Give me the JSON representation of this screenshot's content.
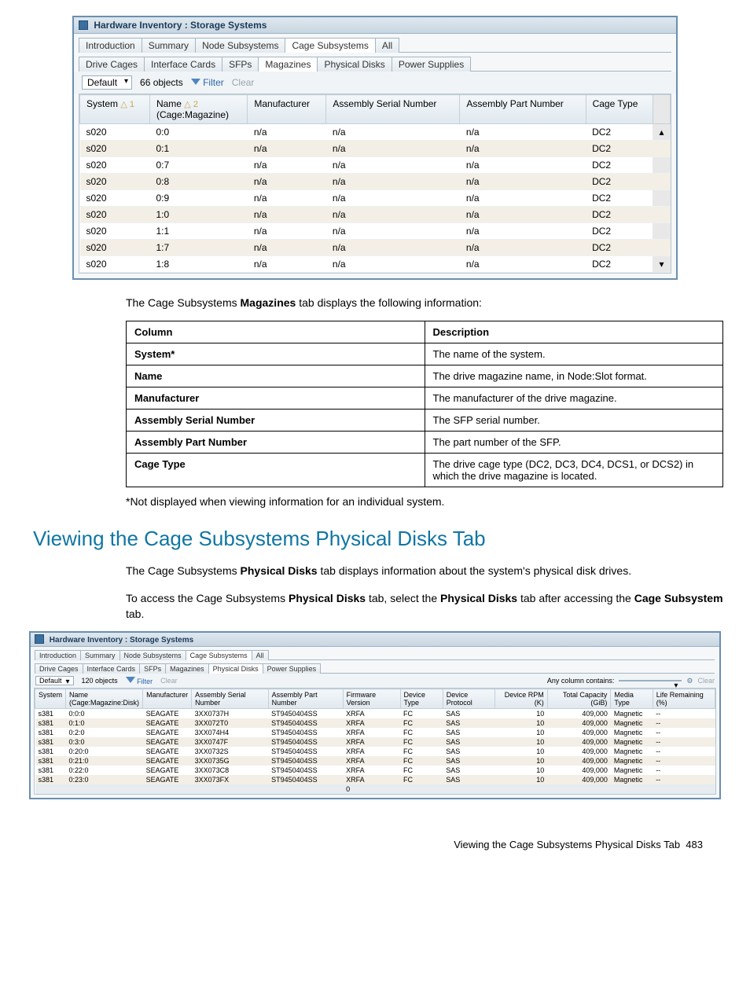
{
  "screenshot1": {
    "title": "Hardware Inventory : Storage Systems",
    "tabs1": [
      "Introduction",
      "Summary",
      "Node Subsystems",
      "Cage Subsystems",
      "All"
    ],
    "tabs1_active": 3,
    "tabs2": [
      "Drive Cages",
      "Interface Cards",
      "SFPs",
      "Magazines",
      "Physical Disks",
      "Power Supplies"
    ],
    "tabs2_active": 3,
    "toolbar": {
      "view": "Default",
      "count": "66 objects",
      "filter": "Filter",
      "clear": "Clear"
    },
    "columns": [
      {
        "label": "System",
        "sort": "△ 1"
      },
      {
        "label": "Name",
        "sub": "(Cage:Magazine)",
        "sort": "△ 2"
      },
      {
        "label": "Manufacturer"
      },
      {
        "label": "Assembly Serial Number"
      },
      {
        "label": "Assembly Part Number"
      },
      {
        "label": "Cage Type"
      }
    ],
    "rows": [
      {
        "sys": "s020",
        "name": "0:0",
        "man": "n/a",
        "asn": "n/a",
        "apn": "n/a",
        "cage": "DC2"
      },
      {
        "sys": "s020",
        "name": "0:1",
        "man": "n/a",
        "asn": "n/a",
        "apn": "n/a",
        "cage": "DC2"
      },
      {
        "sys": "s020",
        "name": "0:7",
        "man": "n/a",
        "asn": "n/a",
        "apn": "n/a",
        "cage": "DC2"
      },
      {
        "sys": "s020",
        "name": "0:8",
        "man": "n/a",
        "asn": "n/a",
        "apn": "n/a",
        "cage": "DC2"
      },
      {
        "sys": "s020",
        "name": "0:9",
        "man": "n/a",
        "asn": "n/a",
        "apn": "n/a",
        "cage": "DC2"
      },
      {
        "sys": "s020",
        "name": "1:0",
        "man": "n/a",
        "asn": "n/a",
        "apn": "n/a",
        "cage": "DC2"
      },
      {
        "sys": "s020",
        "name": "1:1",
        "man": "n/a",
        "asn": "n/a",
        "apn": "n/a",
        "cage": "DC2"
      },
      {
        "sys": "s020",
        "name": "1:7",
        "man": "n/a",
        "asn": "n/a",
        "apn": "n/a",
        "cage": "DC2"
      },
      {
        "sys": "s020",
        "name": "1:8",
        "man": "n/a",
        "asn": "n/a",
        "apn": "n/a",
        "cage": "DC2"
      }
    ]
  },
  "doc": {
    "intro1a": "The Cage Subsystems ",
    "intro1b": "Magazines",
    "intro1c": " tab displays the following information:",
    "table_headers": [
      "Column",
      "Description"
    ],
    "table_rows": [
      [
        "System*",
        "The name of the system."
      ],
      [
        "Name",
        "The drive magazine name, in Node:Slot format."
      ],
      [
        "Manufacturer",
        "The manufacturer of the drive magazine."
      ],
      [
        "Assembly Serial Number",
        "The SFP serial number."
      ],
      [
        "Assembly Part Number",
        "The part number of the SFP."
      ],
      [
        "Cage Type",
        "The drive cage type (DC2, DC3, DC4, DCS1, or DCS2) in which the drive magazine is located."
      ]
    ],
    "footnote": "*Not displayed when viewing information for an individual system.",
    "h2": "Viewing the Cage Subsystems Physical Disks Tab",
    "p2a": "The Cage Subsystems ",
    "p2b": "Physical Disks",
    "p2c": " tab displays information about the system's physical disk drives.",
    "p3a": "To access the Cage Subsystems ",
    "p3b": "Physical Disks",
    "p3c": " tab, select the ",
    "p3d": "Physical Disks",
    "p3e": " tab after accessing the ",
    "p3f": "Cage Subsystem",
    "p3g": " tab."
  },
  "screenshot2": {
    "title": "Hardware Inventory : Storage Systems",
    "tabs1": [
      "Introduction",
      "Summary",
      "Node Subsystems",
      "Cage Subsystems",
      "All"
    ],
    "tabs1_active": 3,
    "tabs2": [
      "Drive Cages",
      "Interface Cards",
      "SFPs",
      "Magazines",
      "Physical Disks",
      "Power Supplies"
    ],
    "tabs2_active": 4,
    "toolbar": {
      "view": "Default",
      "count": "120 objects",
      "filter": "Filter",
      "clear": "Clear",
      "anycol": "Any column contains:",
      "clear2": "Clear"
    },
    "columns": [
      "System",
      "Name",
      "Manufacturer",
      "Assembly Serial Number",
      "Assembly Part Number",
      "Firmware Version",
      "Device Type",
      "Device Protocol",
      "Device RPM (K)",
      "Total Capacity (GiB)",
      "Media Type",
      "Life Remaining (%)"
    ],
    "name_sub": "(Cage:Magazine:Disk)",
    "rows": [
      {
        "sys": "s381",
        "name": "0:0:0",
        "man": "SEAGATE",
        "asn": "3XX0737H",
        "apn": "ST9450404SS",
        "fw": "XRFA",
        "dt": "FC",
        "dp": "SAS",
        "rpm": "10",
        "cap": "409,000",
        "mt": "Magnetic",
        "life": "--"
      },
      {
        "sys": "s381",
        "name": "0:1:0",
        "man": "SEAGATE",
        "asn": "3XX072T0",
        "apn": "ST9450404SS",
        "fw": "XRFA",
        "dt": "FC",
        "dp": "SAS",
        "rpm": "10",
        "cap": "409,000",
        "mt": "Magnetic",
        "life": "--"
      },
      {
        "sys": "s381",
        "name": "0:2:0",
        "man": "SEAGATE",
        "asn": "3XX074H4",
        "apn": "ST9450404SS",
        "fw": "XRFA",
        "dt": "FC",
        "dp": "SAS",
        "rpm": "10",
        "cap": "409,000",
        "mt": "Magnetic",
        "life": "--"
      },
      {
        "sys": "s381",
        "name": "0:3:0",
        "man": "SEAGATE",
        "asn": "3XX0747F",
        "apn": "ST9450404SS",
        "fw": "XRFA",
        "dt": "FC",
        "dp": "SAS",
        "rpm": "10",
        "cap": "409,000",
        "mt": "Magnetic",
        "life": "--"
      },
      {
        "sys": "s381",
        "name": "0:20:0",
        "man": "SEAGATE",
        "asn": "3XX0732S",
        "apn": "ST9450404SS",
        "fw": "XRFA",
        "dt": "FC",
        "dp": "SAS",
        "rpm": "10",
        "cap": "409,000",
        "mt": "Magnetic",
        "life": "--"
      },
      {
        "sys": "s381",
        "name": "0:21:0",
        "man": "SEAGATE",
        "asn": "3XX0735G",
        "apn": "ST9450404SS",
        "fw": "XRFA",
        "dt": "FC",
        "dp": "SAS",
        "rpm": "10",
        "cap": "409,000",
        "mt": "Magnetic",
        "life": "--"
      },
      {
        "sys": "s381",
        "name": "0:22:0",
        "man": "SEAGATE",
        "asn": "3XX073C8",
        "apn": "ST9450404SS",
        "fw": "XRFA",
        "dt": "FC",
        "dp": "SAS",
        "rpm": "10",
        "cap": "409,000",
        "mt": "Magnetic",
        "life": "--"
      },
      {
        "sys": "s381",
        "name": "0:23:0",
        "man": "SEAGATE",
        "asn": "3XX073FX",
        "apn": "ST9450404SS",
        "fw": "XRFA",
        "dt": "FC",
        "dp": "SAS",
        "rpm": "10",
        "cap": "409,000",
        "mt": "Magnetic",
        "life": "--"
      }
    ],
    "summary_val": "0"
  },
  "pagefoot": {
    "label": "Viewing the Cage Subsystems Physical Disks Tab",
    "num": "483"
  }
}
